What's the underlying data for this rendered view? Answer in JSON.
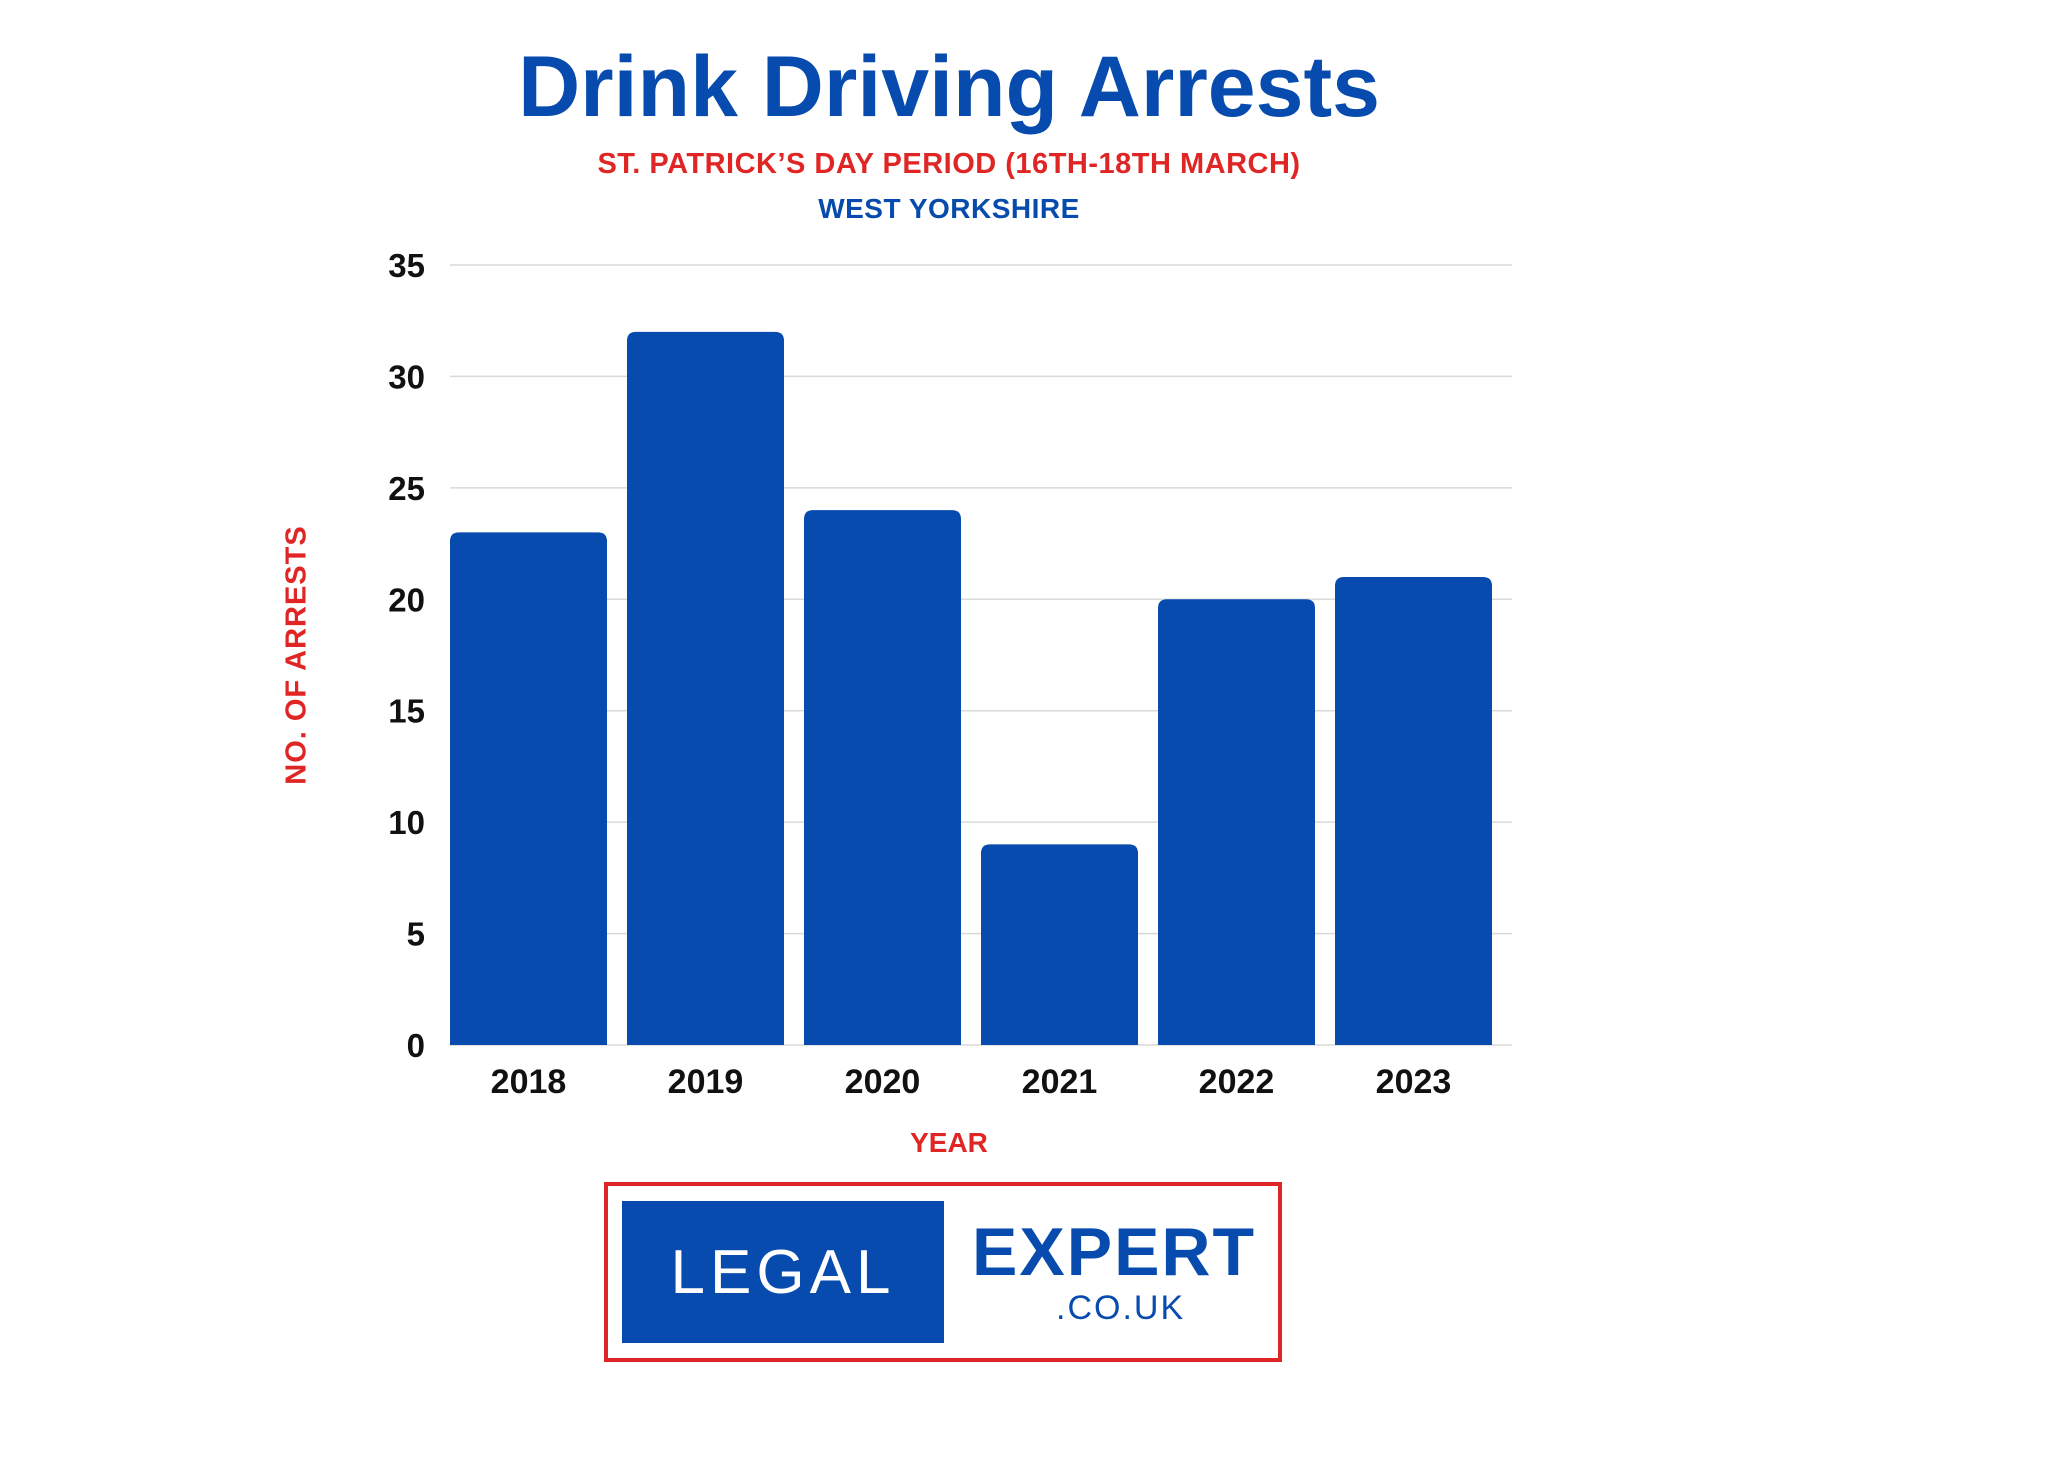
{
  "chart_data": {
    "type": "bar",
    "title": "Drink Driving Arrests",
    "subtitle": "ST. PATRICK’S DAY PERIOD (16TH-18TH MARCH)",
    "region": "WEST YORKSHIRE",
    "xlabel": "YEAR",
    "ylabel": "NO. OF ARRESTS",
    "categories": [
      "2018",
      "2019",
      "2020",
      "2021",
      "2022",
      "2023"
    ],
    "values": [
      23,
      32,
      24,
      9,
      20,
      21
    ],
    "ylim": [
      0,
      35
    ],
    "yticks": [
      0,
      5,
      10,
      15,
      20,
      25,
      30,
      35
    ],
    "grid": true,
    "bar_color": "#064bad",
    "label_color": "#e02525"
  },
  "logo": {
    "left_text": "LEGAL",
    "right_text": "EXPERT",
    "domain_text": ".CO.UK",
    "frame_color": "#e02525",
    "brand_color": "#064bad"
  }
}
